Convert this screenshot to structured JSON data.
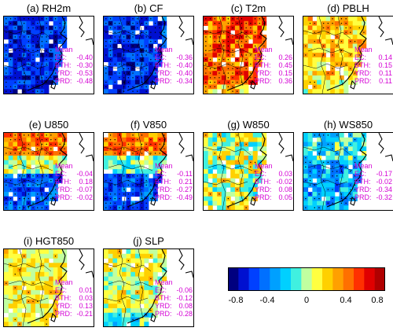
{
  "panels": [
    {
      "label": "(a) RH2m",
      "field": "neg_strong",
      "mean_label": "Mean",
      "rows": [
        {
          "k": "EC:",
          "v": "-0.40"
        },
        {
          "k": "BTH:",
          "v": "-0.30"
        },
        {
          "k": "YRD:",
          "v": "-0.53"
        },
        {
          "k": "PRD:",
          "v": "-0.48"
        }
      ]
    },
    {
      "label": "(b) CF",
      "field": "neg_strong",
      "mean_label": "Mean",
      "rows": [
        {
          "k": "EC:",
          "v": "-0.36"
        },
        {
          "k": "BTH:",
          "v": "-0.40"
        },
        {
          "k": "YRD:",
          "v": "-0.40"
        },
        {
          "k": "PRD:",
          "v": "-0.34"
        }
      ]
    },
    {
      "label": "(c) T2m",
      "field": "pos_strong",
      "mean_label": "Mean",
      "rows": [
        {
          "k": "EC:",
          "v": "0.26"
        },
        {
          "k": "BTH:",
          "v": "0.45"
        },
        {
          "k": "YRD:",
          "v": "0.15"
        },
        {
          "k": "PRD:",
          "v": "0.36"
        }
      ]
    },
    {
      "label": "(d) PBLH",
      "field": "pos_mid",
      "mean_label": "Mean",
      "rows": [
        {
          "k": "EC:",
          "v": "0.14"
        },
        {
          "k": "BTH:",
          "v": "0.15"
        },
        {
          "k": "YRD:",
          "v": "0.11"
        },
        {
          "k": "PRD:",
          "v": "0.11"
        }
      ]
    },
    {
      "label": "(e) U850",
      "field": "mixed_u",
      "mean_label": "Mean",
      "rows": [
        {
          "k": "EC:",
          "v": "-0.04"
        },
        {
          "k": "BTH:",
          "v": "0.18"
        },
        {
          "k": "YRD:",
          "v": "-0.07"
        },
        {
          "k": "PRD:",
          "v": "-0.02"
        }
      ]
    },
    {
      "label": "(f) V850",
      "field": "mixed_v",
      "mean_label": "Mean",
      "rows": [
        {
          "k": "EC:",
          "v": "-0.11"
        },
        {
          "k": "BTH:",
          "v": "0.21"
        },
        {
          "k": "YRD:",
          "v": "-0.27"
        },
        {
          "k": "PRD:",
          "v": "-0.49"
        }
      ]
    },
    {
      "label": "(g) W850",
      "field": "weak",
      "mean_label": "Mean",
      "rows": [
        {
          "k": "EC:",
          "v": "0.03"
        },
        {
          "k": "BTH:",
          "v": "-0.02"
        },
        {
          "k": "YRD:",
          "v": "0.08"
        },
        {
          "k": "PRD:",
          "v": "0.05"
        }
      ]
    },
    {
      "label": "(h) WS850",
      "field": "neg_mid",
      "mean_label": "Mean",
      "rows": [
        {
          "k": "EC:",
          "v": "-0.17"
        },
        {
          "k": "BTH:",
          "v": "-0.02"
        },
        {
          "k": "YRD:",
          "v": "-0.34"
        },
        {
          "k": "PRD:",
          "v": "-0.32"
        }
      ]
    },
    {
      "label": "(i) HGT850",
      "field": "weak_pos",
      "mean_label": "Mean",
      "rows": [
        {
          "k": "EC:",
          "v": "0.01"
        },
        {
          "k": "BTH:",
          "v": "0.03"
        },
        {
          "k": "YRD:",
          "v": "0.13"
        },
        {
          "k": "PRD:",
          "v": "-0.21"
        }
      ]
    },
    {
      "label": "(j) SLP",
      "field": "weak_neg",
      "mean_label": "Mean",
      "rows": [
        {
          "k": "EC:",
          "v": "-0.06"
        },
        {
          "k": "BTH:",
          "v": "-0.12"
        },
        {
          "k": "YRD:",
          "v": "0.08"
        },
        {
          "k": "PRD:",
          "v": "-0.28"
        }
      ]
    }
  ],
  "chart_data": {
    "type": "heatmap",
    "panels": [
      "(a) RH2m",
      "(b) CF",
      "(c) T2m",
      "(d) PBLH",
      "(e) U850",
      "(f) V850",
      "(g) W850",
      "(h) WS850",
      "(i) HGT850",
      "(j) SLP"
    ],
    "regional_means": {
      "regions": [
        "EC",
        "BTH",
        "YRD",
        "PRD"
      ],
      "values": {
        "RH2m": [
          -0.4,
          -0.3,
          -0.53,
          -0.48
        ],
        "CF": [
          -0.36,
          -0.4,
          -0.4,
          -0.34
        ],
        "T2m": [
          0.26,
          0.45,
          0.15,
          0.36
        ],
        "PBLH": [
          0.14,
          0.15,
          0.11,
          0.11
        ],
        "U850": [
          -0.04,
          0.18,
          -0.07,
          -0.02
        ],
        "V850": [
          -0.11,
          0.21,
          -0.27,
          -0.49
        ],
        "W850": [
          0.03,
          -0.02,
          0.08,
          0.05
        ],
        "WS850": [
          -0.17,
          -0.02,
          -0.34,
          -0.32
        ],
        "HGT850": [
          0.01,
          0.03,
          0.13,
          -0.21
        ],
        "SLP": [
          -0.06,
          -0.12,
          0.08,
          -0.28
        ]
      }
    },
    "colorbar": {
      "range": [
        -0.8,
        0.8
      ],
      "ticks": [
        "-0.8",
        "-0.4",
        "0",
        "0.4",
        "0.8"
      ],
      "colors": [
        "#00007f",
        "#0010d0",
        "#0040ff",
        "#0070ff",
        "#00a0ff",
        "#00d0ff",
        "#40f0e0",
        "#c0ffa0",
        "#ffff40",
        "#ffd000",
        "#ffa000",
        "#ff7000",
        "#ff3000",
        "#e00000",
        "#b00000"
      ]
    }
  }
}
